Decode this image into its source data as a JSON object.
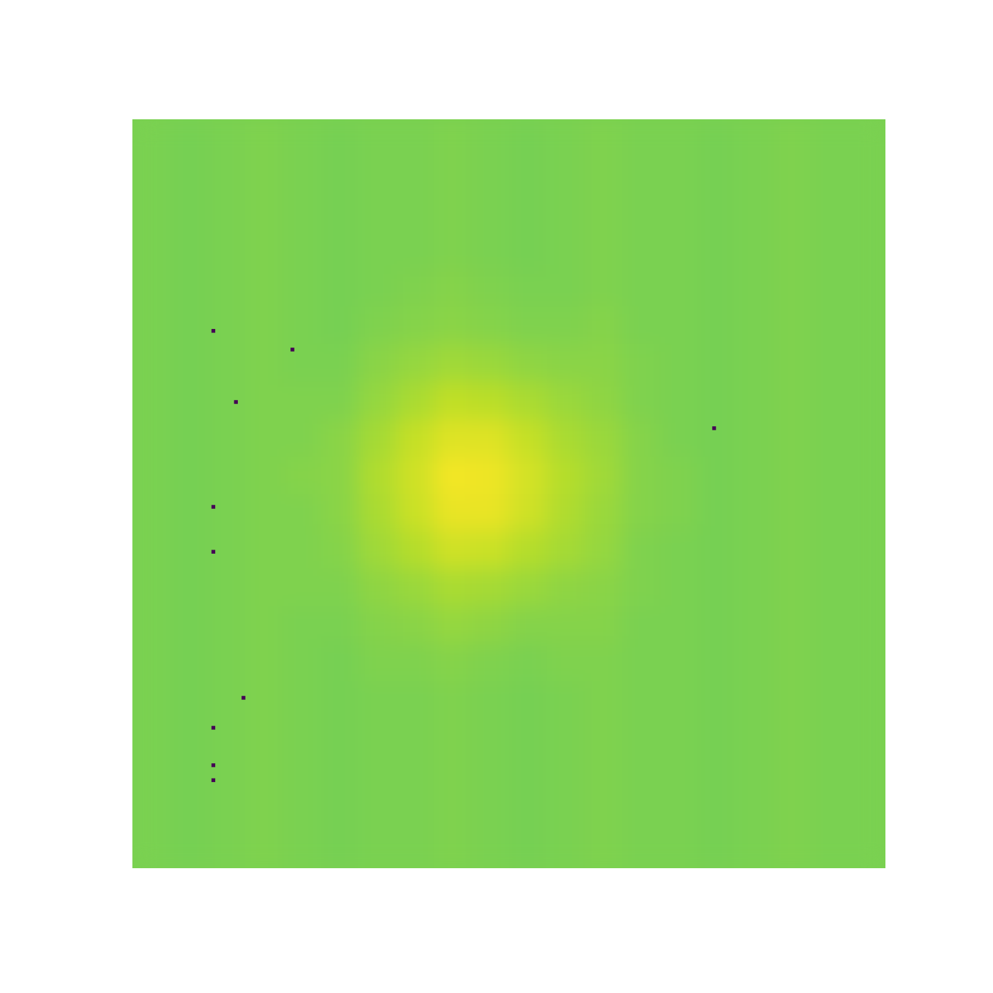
{
  "chart_data": {
    "type": "heatmap",
    "xlim": [
      0,
      200
    ],
    "ylim": [
      200,
      0
    ],
    "tick_labels": false,
    "color_range": [
      0,
      125
    ],
    "cells": [
      [
        100,
        99,
        100,
        101,
        100,
        99,
        100,
        100,
        101,
        100,
        99,
        100,
        101,
        100,
        100,
        99,
        100,
        101,
        100,
        100
      ],
      [
        100,
        99,
        100,
        101,
        100,
        99,
        100,
        100,
        101,
        100,
        99,
        100,
        101,
        100,
        100,
        99,
        100,
        101,
        100,
        100
      ],
      [
        100,
        99,
        100,
        101,
        100,
        99,
        100,
        100,
        101,
        100,
        99,
        100,
        101,
        100,
        100,
        99,
        100,
        101,
        100,
        100
      ],
      [
        100,
        99,
        100,
        101,
        100,
        99,
        100,
        100,
        101,
        100,
        99,
        100,
        101,
        100,
        100,
        99,
        100,
        101,
        100,
        100
      ],
      [
        100,
        99,
        100,
        101,
        100,
        99,
        100,
        101,
        102,
        101,
        100,
        100,
        101,
        100,
        100,
        99,
        100,
        101,
        100,
        100
      ],
      [
        100,
        99,
        100,
        101,
        100,
        99,
        101,
        102,
        103,
        102,
        101,
        101,
        102,
        100,
        100,
        99,
        100,
        101,
        100,
        100
      ],
      [
        100,
        99,
        100,
        101,
        100,
        100,
        103,
        105,
        107,
        106,
        104,
        103,
        103,
        101,
        100,
        99,
        100,
        101,
        100,
        100
      ],
      [
        100,
        99,
        100,
        101,
        101,
        101,
        105,
        109,
        113,
        112,
        109,
        106,
        104,
        101,
        100,
        99,
        100,
        101,
        100,
        100
      ],
      [
        100,
        99,
        100,
        101,
        101,
        103,
        108,
        114,
        119,
        119,
        114,
        109,
        106,
        102,
        100,
        99,
        100,
        101,
        100,
        100
      ],
      [
        100,
        99,
        100,
        101,
        102,
        103,
        110,
        116,
        123,
        122,
        117,
        111,
        107,
        102,
        101,
        99,
        100,
        101,
        100,
        100
      ],
      [
        100,
        99,
        100,
        101,
        101,
        103,
        109,
        115,
        121,
        121,
        116,
        110,
        106,
        102,
        101,
        99,
        100,
        101,
        100,
        100
      ],
      [
        100,
        99,
        100,
        101,
        101,
        102,
        107,
        111,
        116,
        115,
        111,
        108,
        105,
        101,
        100,
        99,
        100,
        101,
        100,
        100
      ],
      [
        100,
        99,
        100,
        101,
        101,
        101,
        104,
        106,
        109,
        108,
        106,
        104,
        103,
        101,
        100,
        99,
        100,
        101,
        100,
        100
      ],
      [
        100,
        99,
        100,
        101,
        100,
        100,
        102,
        103,
        105,
        104,
        102,
        102,
        102,
        100,
        100,
        99,
        100,
        101,
        100,
        100
      ],
      [
        100,
        99,
        100,
        101,
        100,
        99,
        101,
        101,
        102,
        101,
        100,
        101,
        101,
        100,
        100,
        99,
        100,
        101,
        100,
        100
      ],
      [
        100,
        99,
        100,
        101,
        100,
        99,
        100,
        100,
        101,
        100,
        99,
        100,
        101,
        100,
        100,
        99,
        100,
        101,
        100,
        100
      ],
      [
        100,
        99,
        100,
        101,
        100,
        99,
        100,
        100,
        101,
        100,
        99,
        100,
        101,
        100,
        100,
        99,
        100,
        101,
        100,
        100
      ],
      [
        100,
        99,
        100,
        101,
        100,
        99,
        100,
        100,
        101,
        100,
        99,
        100,
        101,
        100,
        100,
        99,
        100,
        101,
        100,
        100
      ],
      [
        100,
        99,
        100,
        101,
        100,
        99,
        100,
        100,
        101,
        100,
        99,
        100,
        101,
        100,
        100,
        99,
        100,
        101,
        100,
        100
      ],
      [
        100,
        99,
        100,
        101,
        100,
        99,
        100,
        100,
        101,
        100,
        99,
        100,
        101,
        100,
        100,
        99,
        100,
        101,
        100,
        100
      ]
    ],
    "dead_pixels": {
      "x": [
        21,
        42,
        27,
        154,
        21,
        21,
        29,
        21,
        21,
        21
      ],
      "y": [
        56,
        61,
        75,
        82,
        103,
        115,
        154,
        162,
        172,
        176
      ],
      "values": [
        0,
        0,
        0,
        0,
        0,
        0,
        0,
        0,
        0,
        0
      ]
    }
  }
}
